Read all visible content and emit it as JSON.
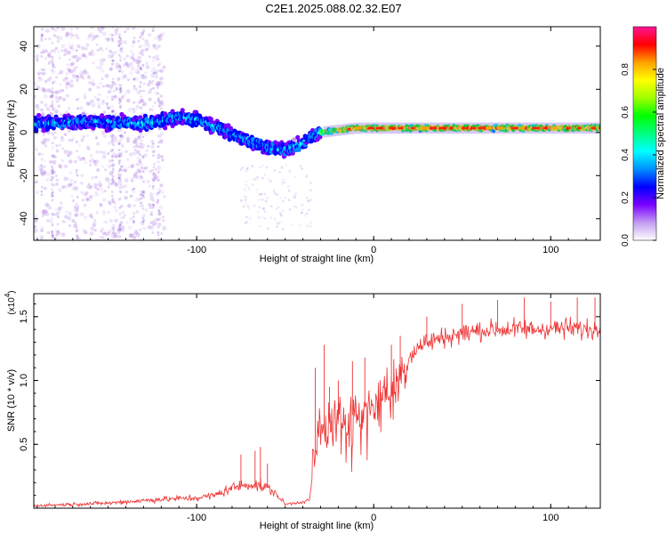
{
  "figure": {
    "title": "C2E1.2025.088.02.32.E07"
  },
  "chart_data": [
    {
      "type": "heatmap",
      "xlabel": "Height of straight line (km)",
      "ylabel": "Frequency (Hz)",
      "xlim": [
        -192,
        128
      ],
      "ylim": [
        -50,
        49
      ],
      "xticks": [
        "-100",
        "0",
        "100"
      ],
      "yticks": [
        "-40",
        "-20",
        "0",
        "20",
        "40"
      ],
      "colorbar": {
        "label": "Normalized spectral amplitude",
        "range": [
          0,
          1
        ],
        "ticks": [
          "0.0",
          "0.2",
          "0.4",
          "0.6",
          "0.8"
        ],
        "colors": [
          "#ffffff",
          "#c39bf2",
          "#7a00ff",
          "#0000ff",
          "#0090ff",
          "#00ffff",
          "#00ff80",
          "#00ff00",
          "#a0ff00",
          "#ffff00",
          "#ffa000",
          "#ff0000",
          "#ff1493"
        ]
      },
      "ridge": {
        "x": [
          -192,
          -160,
          -130,
          -110,
          -100,
          -90,
          -80,
          -70,
          -60,
          -50,
          -45,
          -40,
          -35,
          -30,
          -20,
          -10,
          0,
          50,
          128
        ],
        "y": [
          4,
          5,
          4,
          7,
          6,
          3,
          -1,
          -4,
          -7,
          -8,
          -7,
          -5,
          -2,
          0,
          1,
          2,
          2,
          2,
          2
        ]
      }
    },
    {
      "type": "line",
      "xlabel": "Height of straight line (km)",
      "ylabel": "SNR (10 * v/v)",
      "y_scale_label": "(x10",
      "y_scale_exp": "4",
      "xlim": [
        -192,
        128
      ],
      "ylim": [
        0,
        1.68
      ],
      "xticks": [
        "-100",
        "0",
        "100"
      ],
      "yticks": [
        "0.5",
        "1.0",
        "1.5"
      ],
      "series": [
        {
          "color": "#ee3333",
          "envelope_x": [
            -192,
            -150,
            -120,
            -100,
            -90,
            -80,
            -70,
            -60,
            -55,
            -50,
            -45,
            -40,
            -36,
            -34,
            -30,
            -26,
            -22,
            -18,
            -14,
            -10,
            -5,
            0,
            5,
            10,
            14,
            18,
            22,
            26,
            30,
            40,
            50,
            60,
            70,
            80,
            90,
            100,
            110,
            120,
            128
          ],
          "envelope_y": [
            0.02,
            0.04,
            0.07,
            0.08,
            0.1,
            0.16,
            0.19,
            0.16,
            0.11,
            0.03,
            0.04,
            0.05,
            0.07,
            0.38,
            0.62,
            0.66,
            0.68,
            0.7,
            0.72,
            0.74,
            0.8,
            0.85,
            0.92,
            0.95,
            1.05,
            1.12,
            1.22,
            1.27,
            1.3,
            1.34,
            1.37,
            1.39,
            1.4,
            1.4,
            1.4,
            1.41,
            1.41,
            1.4,
            1.4
          ],
          "spikes": [
            {
              "x": -75,
              "y": 0.42
            },
            {
              "x": -67,
              "y": 0.45
            },
            {
              "x": -64,
              "y": 0.48
            },
            {
              "x": -60,
              "y": 0.35
            },
            {
              "x": -33,
              "y": 1.1
            },
            {
              "x": -28,
              "y": 1.28
            },
            {
              "x": -25,
              "y": 0.95
            },
            {
              "x": -20,
              "y": 1.0
            },
            {
              "x": -12,
              "y": 1.15
            },
            {
              "x": -5,
              "y": 1.18
            },
            {
              "x": 10,
              "y": 1.28
            },
            {
              "x": 15,
              "y": 1.35
            },
            {
              "x": 30,
              "y": 1.5
            },
            {
              "x": 50,
              "y": 1.6
            },
            {
              "x": 70,
              "y": 1.63
            },
            {
              "x": 85,
              "y": 1.65
            },
            {
              "x": 100,
              "y": 1.62
            },
            {
              "x": 115,
              "y": 1.65
            },
            {
              "x": 125,
              "y": 1.65
            }
          ]
        }
      ]
    }
  ]
}
